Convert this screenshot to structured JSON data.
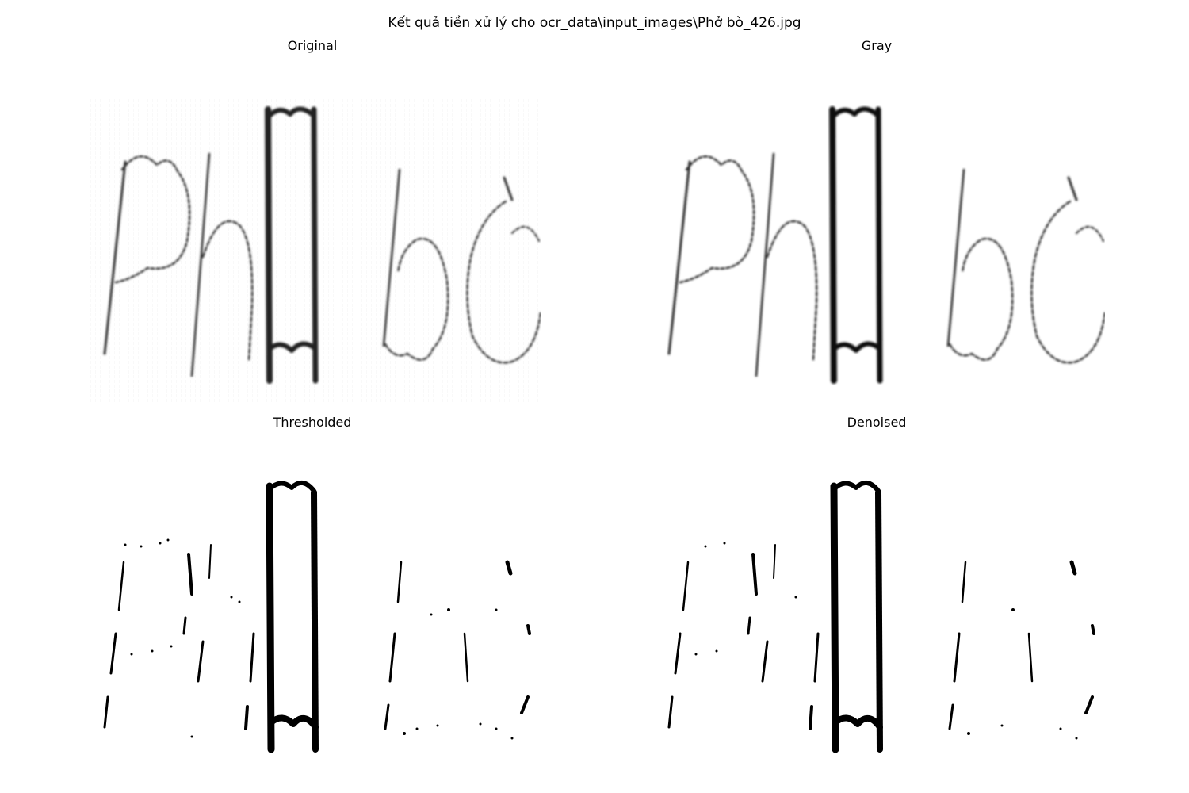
{
  "figure": {
    "suptitle": "Kết quả tiền xử lý cho ocr_data\\input_images\\Phở bò_426.jpg"
  },
  "panels": [
    {
      "title": "Original",
      "image_text": "Phở bò",
      "style": "soft-gray"
    },
    {
      "title": "Gray",
      "image_text": "Phở bò",
      "style": "soft-gray"
    },
    {
      "title": "Thresholded",
      "image_text": "Phở bò",
      "style": "binary"
    },
    {
      "title": "Denoised",
      "image_text": "Phở bò",
      "style": "binary"
    }
  ],
  "colors": {
    "background": "#ffffff",
    "ink": "#000000",
    "stroke_gray": "#333333"
  }
}
